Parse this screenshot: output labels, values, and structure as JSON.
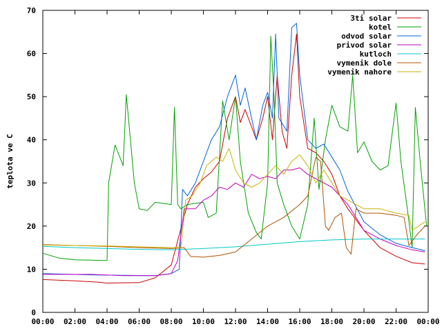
{
  "chart_data": {
    "type": "line",
    "title": "",
    "xlabel": "",
    "ylabel": "teplota ve C",
    "xlim": [
      0,
      24
    ],
    "ylim": [
      0,
      70
    ],
    "grid": false,
    "legend_position": "top-right",
    "x_tick_labels": [
      "00:00",
      "02:00",
      "04:00",
      "06:00",
      "08:00",
      "10:00",
      "12:00",
      "14:00",
      "16:00",
      "18:00",
      "20:00",
      "22:00",
      "00:00"
    ],
    "y_tick_labels": [
      "0",
      "10",
      "20",
      "30",
      "40",
      "50",
      "60",
      "70"
    ],
    "y_ticks": [
      0,
      10,
      20,
      30,
      40,
      50,
      60,
      70
    ],
    "series": [
      {
        "name": "3ti solar",
        "color": "#cc0000",
        "points": [
          [
            0,
            7.6
          ],
          [
            2,
            7.3
          ],
          [
            3.5,
            7.0
          ],
          [
            4,
            6.8
          ],
          [
            6,
            6.9
          ],
          [
            7,
            8.0
          ],
          [
            8,
            11.0
          ],
          [
            8.5,
            18.0
          ],
          [
            9,
            25.0
          ],
          [
            9.5,
            29.0
          ],
          [
            10,
            31.0
          ],
          [
            10.5,
            32.5
          ],
          [
            11,
            35.0
          ],
          [
            11.5,
            45.0
          ],
          [
            12,
            50.0
          ],
          [
            12.3,
            44.0
          ],
          [
            12.6,
            47.0
          ],
          [
            13,
            43.0
          ],
          [
            13.3,
            40.0
          ],
          [
            13.7,
            45.0
          ],
          [
            14,
            50.0
          ],
          [
            14.3,
            40.0
          ],
          [
            14.6,
            55.0
          ],
          [
            14.9,
            42.0
          ],
          [
            15.2,
            38.0
          ],
          [
            15.5,
            55.0
          ],
          [
            15.8,
            64.5
          ],
          [
            16,
            50.0
          ],
          [
            16.5,
            38.0
          ],
          [
            17,
            37.0
          ],
          [
            17.5,
            35.0
          ],
          [
            18,
            32.0
          ],
          [
            18.5,
            27.0
          ],
          [
            19,
            24.0
          ],
          [
            20,
            19.0
          ],
          [
            21,
            15.0
          ],
          [
            22,
            13.0
          ],
          [
            23,
            11.5
          ],
          [
            23.8,
            11.2
          ]
        ]
      },
      {
        "name": "kotel",
        "color": "#00a000",
        "points": [
          [
            0,
            13.7
          ],
          [
            1,
            12.6
          ],
          [
            2,
            12.2
          ],
          [
            4,
            12.0
          ],
          [
            4.1,
            30.0
          ],
          [
            4.5,
            38.8
          ],
          [
            5,
            34.0
          ],
          [
            5.2,
            50.5
          ],
          [
            5.7,
            30.0
          ],
          [
            6,
            24.0
          ],
          [
            6.5,
            23.6
          ],
          [
            7,
            25.5
          ],
          [
            8,
            25.0
          ],
          [
            8.2,
            47.5
          ],
          [
            8.4,
            25.0
          ],
          [
            8.6,
            24.0
          ],
          [
            9,
            25.0
          ],
          [
            10,
            25.5
          ],
          [
            10.3,
            22.0
          ],
          [
            10.8,
            23.0
          ],
          [
            11.2,
            49.0
          ],
          [
            11.6,
            40.0
          ],
          [
            12,
            50.0
          ],
          [
            12.3,
            35.0
          ],
          [
            12.8,
            23.0
          ],
          [
            13.3,
            18.5
          ],
          [
            13.6,
            17.0
          ],
          [
            14,
            30.0
          ],
          [
            14.2,
            64.0
          ],
          [
            14.4,
            50.0
          ],
          [
            14.6,
            30.0
          ],
          [
            15,
            25.0
          ],
          [
            15.5,
            20.0
          ],
          [
            16,
            17.0
          ],
          [
            16.5,
            25.0
          ],
          [
            16.9,
            45.0
          ],
          [
            17.2,
            28.5
          ],
          [
            17.6,
            40.0
          ],
          [
            18,
            48.0
          ],
          [
            18.5,
            43.0
          ],
          [
            19,
            42.0
          ],
          [
            19.3,
            55.0
          ],
          [
            19.6,
            37.0
          ],
          [
            20,
            39.5
          ],
          [
            20.5,
            35.0
          ],
          [
            21,
            33.0
          ],
          [
            21.5,
            34.0
          ],
          [
            22,
            48.5
          ],
          [
            22.3,
            35.0
          ],
          [
            22.7,
            24.0
          ],
          [
            23,
            15.0
          ],
          [
            23.2,
            47.5
          ],
          [
            23.5,
            35.0
          ],
          [
            23.9,
            20.0
          ]
        ]
      },
      {
        "name": "odvod solar",
        "color": "#0060e0",
        "points": [
          [
            0,
            9.0
          ],
          [
            3,
            8.7
          ],
          [
            5,
            8.6
          ],
          [
            7,
            8.5
          ],
          [
            8,
            9.0
          ],
          [
            8.5,
            10.0
          ],
          [
            8.7,
            28.5
          ],
          [
            9,
            27.0
          ],
          [
            9.5,
            30.0
          ],
          [
            10,
            35.0
          ],
          [
            10.5,
            40.0
          ],
          [
            11,
            43.0
          ],
          [
            11.5,
            50.0
          ],
          [
            12,
            55.0
          ],
          [
            12.3,
            48.0
          ],
          [
            12.6,
            52.0
          ],
          [
            13,
            45.0
          ],
          [
            13.3,
            40.0
          ],
          [
            13.7,
            48.0
          ],
          [
            14,
            51.0
          ],
          [
            14.3,
            45.0
          ],
          [
            14.5,
            64.5
          ],
          [
            14.7,
            45.0
          ],
          [
            15.2,
            42.0
          ],
          [
            15.5,
            66.0
          ],
          [
            15.8,
            67.0
          ],
          [
            16,
            55.0
          ],
          [
            16.5,
            40.0
          ],
          [
            17,
            38.0
          ],
          [
            17.5,
            39.0
          ],
          [
            18,
            36.0
          ],
          [
            18.5,
            33.0
          ],
          [
            19,
            28.0
          ],
          [
            20,
            21.0
          ],
          [
            21,
            18.0
          ],
          [
            22,
            16.0
          ],
          [
            23,
            15.0
          ],
          [
            23.8,
            14.3
          ]
        ]
      },
      {
        "name": "privod solar",
        "color": "#c000c0",
        "points": [
          [
            0,
            8.8
          ],
          [
            3,
            8.8
          ],
          [
            5,
            8.5
          ],
          [
            7,
            8.5
          ],
          [
            8,
            9.0
          ],
          [
            8.4,
            12.0
          ],
          [
            8.8,
            24.0
          ],
          [
            9.5,
            24.0
          ],
          [
            10,
            26.0
          ],
          [
            10.5,
            27.0
          ],
          [
            11,
            29.0
          ],
          [
            11.5,
            28.5
          ],
          [
            12,
            30.0
          ],
          [
            12.5,
            29.0
          ],
          [
            13,
            32.0
          ],
          [
            13.5,
            31.0
          ],
          [
            14,
            31.5
          ],
          [
            14.5,
            31.0
          ],
          [
            15,
            33.0
          ],
          [
            15.5,
            33.0
          ],
          [
            16,
            33.5
          ],
          [
            16.5,
            32.0
          ],
          [
            17,
            31.0
          ],
          [
            17.5,
            30.0
          ],
          [
            18,
            29.0
          ],
          [
            18.5,
            27.0
          ],
          [
            19,
            25.0
          ],
          [
            20,
            19.0
          ],
          [
            21,
            17.0
          ],
          [
            22,
            15.5
          ],
          [
            23,
            14.5
          ],
          [
            23.8,
            14.0
          ]
        ]
      },
      {
        "name": "kutloch",
        "color": "#00c8c8",
        "points": [
          [
            0,
            15.3
          ],
          [
            2,
            15.0
          ],
          [
            4,
            14.8
          ],
          [
            6,
            14.6
          ],
          [
            8,
            14.5
          ],
          [
            10,
            14.8
          ],
          [
            12,
            15.2
          ],
          [
            14,
            15.8
          ],
          [
            16,
            16.4
          ],
          [
            18,
            16.8
          ],
          [
            20,
            17.0
          ],
          [
            22,
            17.0
          ],
          [
            23.8,
            17.0
          ]
        ]
      },
      {
        "name": "vymenik dole",
        "color": "#b05000",
        "points": [
          [
            0,
            15.7
          ],
          [
            2,
            15.5
          ],
          [
            4,
            15.3
          ],
          [
            6,
            15.0
          ],
          [
            8,
            14.8
          ],
          [
            8.8,
            15.0
          ],
          [
            9.2,
            13.0
          ],
          [
            10,
            12.8
          ],
          [
            11,
            13.2
          ],
          [
            12,
            14.0
          ],
          [
            13,
            17.0
          ],
          [
            14,
            20.0
          ],
          [
            15,
            22.0
          ],
          [
            16,
            25.0
          ],
          [
            16.5,
            27.0
          ],
          [
            17,
            36.0
          ],
          [
            17.3,
            35.0
          ],
          [
            17.6,
            20.0
          ],
          [
            17.8,
            19.0
          ],
          [
            18.2,
            22.0
          ],
          [
            18.6,
            23.0
          ],
          [
            18.9,
            15.0
          ],
          [
            19.2,
            13.5
          ],
          [
            19.5,
            24.0
          ],
          [
            20,
            23.0
          ],
          [
            21,
            23.0
          ],
          [
            22,
            22.5
          ],
          [
            22.5,
            22.0
          ],
          [
            22.8,
            15.5
          ],
          [
            23.3,
            18.0
          ],
          [
            23.8,
            20.0
          ]
        ]
      },
      {
        "name": "vymenik nahore",
        "color": "#c8b400",
        "points": [
          [
            0,
            15.6
          ],
          [
            2,
            15.5
          ],
          [
            4,
            15.4
          ],
          [
            6,
            15.2
          ],
          [
            8,
            15.0
          ],
          [
            8.6,
            15.0
          ],
          [
            8.9,
            26.0
          ],
          [
            9.3,
            27.0
          ],
          [
            9.8,
            30.0
          ],
          [
            10.2,
            34.0
          ],
          [
            10.8,
            36.0
          ],
          [
            11.2,
            35.0
          ],
          [
            11.6,
            38.0
          ],
          [
            12,
            33.0
          ],
          [
            12.5,
            30.0
          ],
          [
            13,
            29.0
          ],
          [
            13.5,
            30.0
          ],
          [
            14,
            32.0
          ],
          [
            14.5,
            34.0
          ],
          [
            15,
            32.0
          ],
          [
            15.5,
            35.0
          ],
          [
            16,
            36.5
          ],
          [
            16.5,
            34.0
          ],
          [
            17,
            30.0
          ],
          [
            17.5,
            33.0
          ],
          [
            18,
            30.0
          ],
          [
            18.5,
            27.0
          ],
          [
            19,
            26.0
          ],
          [
            20,
            24.0
          ],
          [
            21,
            24.0
          ],
          [
            22,
            23.0
          ],
          [
            22.8,
            22.5
          ],
          [
            23,
            19.0
          ],
          [
            23.8,
            21.0
          ]
        ]
      }
    ]
  }
}
